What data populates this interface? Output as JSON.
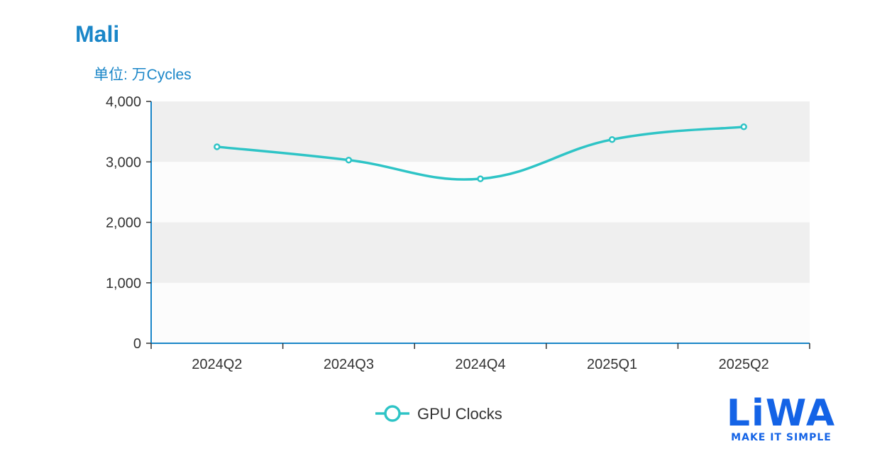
{
  "header": {
    "title": "Mali",
    "unit_label": "单位: 万Cycles"
  },
  "chart_data": {
    "type": "line",
    "categories": [
      "2024Q2",
      "2024Q3",
      "2024Q4",
      "2025Q1",
      "2025Q2"
    ],
    "series": [
      {
        "name": "GPU Clocks",
        "values": [
          3250,
          3030,
          2720,
          3370,
          3580
        ],
        "color": "#2ec4c6"
      }
    ],
    "ylim": [
      0,
      4000
    ],
    "yticks": [
      0,
      1000,
      2000,
      3000,
      4000
    ],
    "ytick_labels": [
      "0",
      "1,000",
      "2,000",
      "3,000",
      "4,000"
    ],
    "smooth": true,
    "grid": "alternating-bands",
    "band_colors": [
      "#fcfcfc",
      "#efefef"
    ],
    "axis_color": "#1a86c8",
    "legend_position": "bottom-center"
  },
  "logo": {
    "wordmark": "LiWA",
    "tagline": "MAKE IT SIMPLE",
    "color": "#1463e6"
  }
}
